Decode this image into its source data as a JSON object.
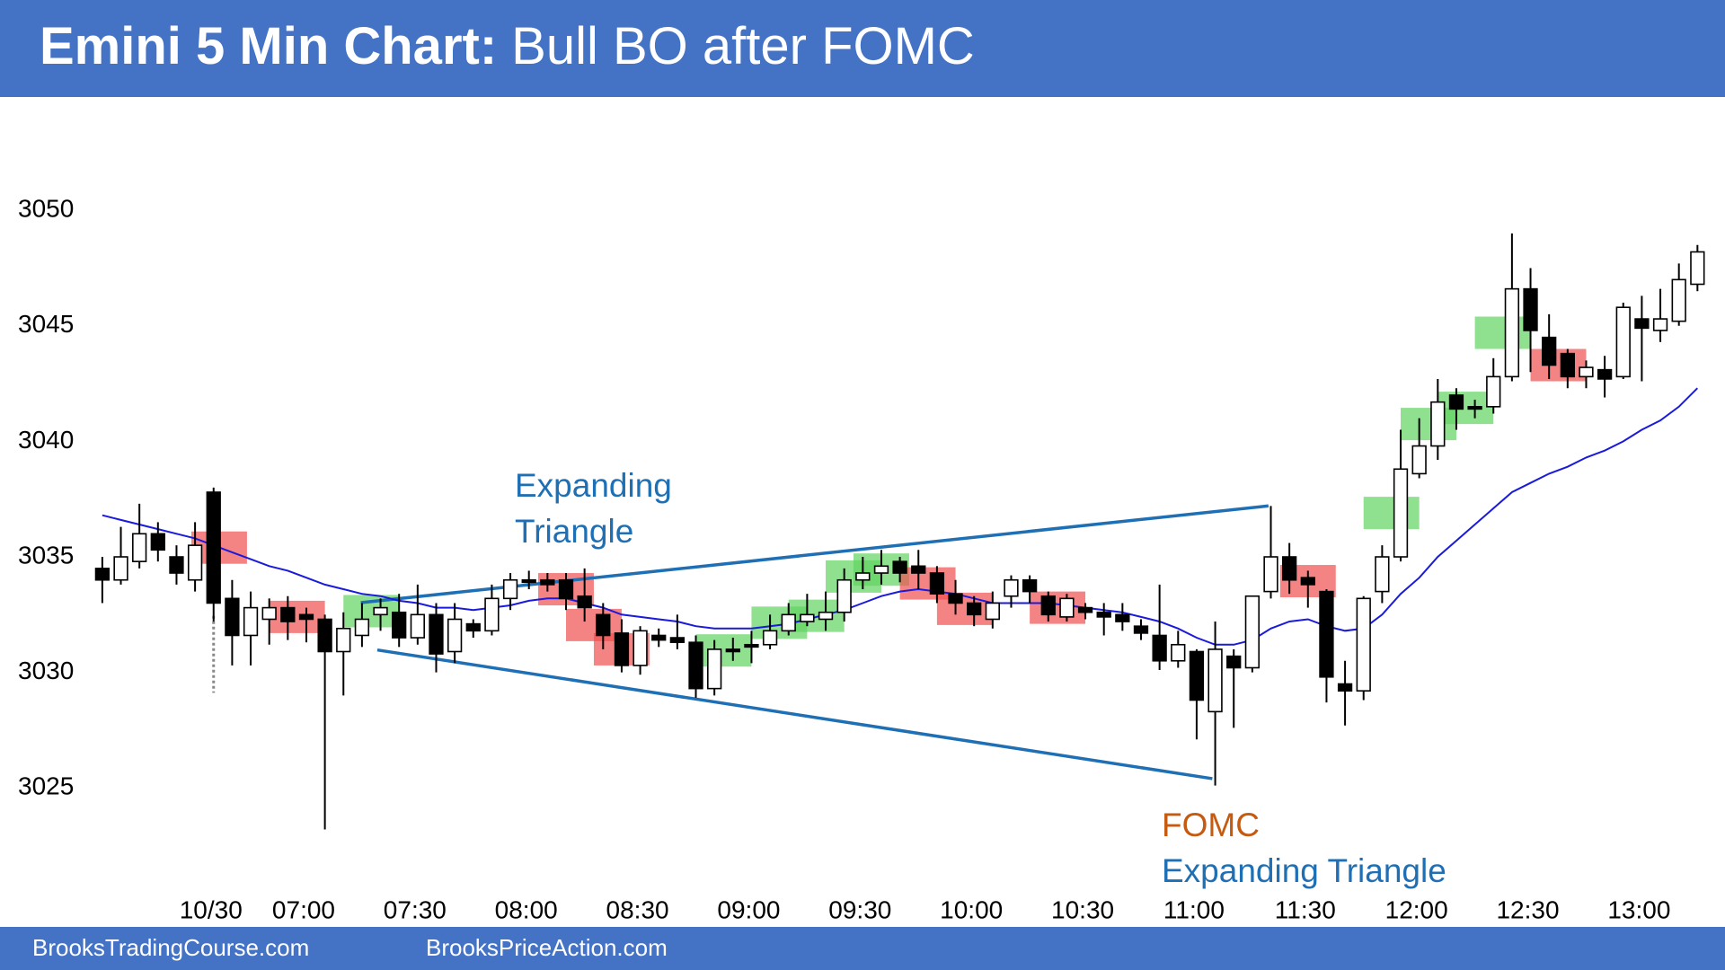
{
  "chart_data": {
    "type": "candlestick",
    "title": "Emini 5 Min Chart:",
    "subtitle": "Bull BO after FOMC",
    "categories": [
      null,
      null,
      null,
      null,
      null,
      null,
      "10/30",
      null,
      null,
      null,
      null,
      "07:00",
      null,
      null,
      null,
      null,
      null,
      "07:30",
      null,
      null,
      null,
      null,
      null,
      "08:00",
      null,
      null,
      null,
      null,
      null,
      "08:30",
      null,
      null,
      null,
      null,
      null,
      "09:00",
      null,
      null,
      null,
      null,
      null,
      "09:30",
      null,
      null,
      null,
      null,
      null,
      "10:00",
      null,
      null,
      null,
      null,
      null,
      "10:30",
      null,
      null,
      null,
      null,
      null,
      "11:00",
      null,
      null,
      null,
      null,
      null,
      "11:30",
      null,
      null,
      null,
      null,
      null,
      "12:00",
      null,
      null,
      null,
      null,
      null,
      "12:30",
      null,
      null,
      null,
      null,
      null,
      "13:00",
      null,
      null,
      null
    ],
    "open": [
      3034.5,
      3034,
      3034.8,
      3036,
      3035,
      3034,
      3037.8,
      3033.2,
      3031.6,
      3032.3,
      3032.8,
      3032.5,
      3032.3,
      3030.9,
      3031.6,
      3032.5,
      3032.6,
      3031.5,
      3032.5,
      3030.9,
      3032.1,
      3031.8,
      3033.2,
      3034,
      3034,
      3034,
      3033.3,
      3032.5,
      3031.7,
      3030.3,
      3031.6,
      3031.5,
      3031.3,
      3029.3,
      3031,
      3031.2,
      3031.2,
      3031.8,
      3032.2,
      3032.3,
      3032.6,
      3034,
      3034.3,
      3034.8,
      3034.6,
      3034.3,
      3033.4,
      3033,
      3032.3,
      3033.3,
      3034,
      3033.3,
      3032.4,
      3032.8,
      3032.6,
      3032.5,
      3032,
      3031.6,
      3030.5,
      3030.9,
      3028.3,
      3030.7,
      3030.2,
      3033.5,
      3035,
      3034.1,
      3033.5,
      3029.5,
      3029.2,
      3033.5,
      3035,
      3038.6,
      3039.8,
      3042,
      3041.5,
      3041.5,
      3042.8,
      3046.6,
      3044.5,
      3043.8,
      3042.8,
      3043.1,
      3042.8,
      3045.3,
      3044.8,
      3045.2,
      3046.8
    ],
    "high": [
      3035,
      3036.3,
      3037.3,
      3036.5,
      3035.5,
      3036.5,
      3038,
      3034,
      3033.5,
      3033.2,
      3033.3,
      3032.8,
      3032.5,
      3032.6,
      3033,
      3033.2,
      3033.4,
      3033.8,
      3033,
      3033,
      3032.3,
      3033.8,
      3034.3,
      3034.4,
      3034.3,
      3034.3,
      3034.5,
      3033,
      3032.3,
      3032,
      3031.9,
      3032.5,
      3031.6,
      3031.4,
      3031.5,
      3031.8,
      3032.5,
      3033,
      3033.4,
      3033.5,
      3034.5,
      3035,
      3035.3,
      3035,
      3035.3,
      3034.6,
      3034,
      3033.3,
      3033.5,
      3034.2,
      3034.2,
      3033.5,
      3033.4,
      3033,
      3033,
      3033,
      3032.3,
      3033.8,
      3031.8,
      3031,
      3032.2,
      3031,
      3033.3,
      3037.2,
      3035.6,
      3034.4,
      3033.6,
      3030.5,
      3033.3,
      3035.5,
      3040.5,
      3041,
      3042.7,
      3042.3,
      3041.8,
      3043.6,
      3049,
      3047.5,
      3045.5,
      3044,
      3043.5,
      3043.7,
      3046,
      3046.3,
      3046.6,
      3047.7,
      3048.5
    ],
    "low": [
      3033,
      3033.8,
      3034.5,
      3034.8,
      3033.8,
      3033.5,
      3032.2,
      3030.3,
      3030.3,
      3031.2,
      3031.4,
      3031.3,
      3023.2,
      3029,
      3031.1,
      3031.8,
      3031.1,
      3031.2,
      3030,
      3030.4,
      3031.5,
      3031.6,
      3032.7,
      3033.6,
      3033.5,
      3032.7,
      3032.2,
      3031,
      3030,
      3029.9,
      3031.1,
      3031,
      3028.9,
      3029,
      3030.5,
      3030.4,
      3031,
      3031.6,
      3032,
      3031.8,
      3032.2,
      3033.6,
      3033.8,
      3033.9,
      3033.6,
      3033,
      3032.5,
      3032,
      3031.9,
      3032.8,
      3033,
      3032.2,
      3032.2,
      3032.3,
      3031.6,
      3031.8,
      3031.4,
      3030.1,
      3030.2,
      3027.1,
      3025.1,
      3027.6,
      3030,
      3033.2,
      3033.4,
      3032.8,
      3028.7,
      3027.7,
      3028.8,
      3033,
      3034.8,
      3038.4,
      3039.2,
      3040.5,
      3041,
      3041.2,
      3042.6,
      3043,
      3042.7,
      3042.3,
      3042.3,
      3041.9,
      3042.7,
      3042.6,
      3044.3,
      3045,
      3046.5
    ],
    "close": [
      3034,
      3035,
      3036,
      3035.3,
      3034.3,
      3035.5,
      3033,
      3031.6,
      3032.8,
      3032.8,
      3032.2,
      3032.3,
      3030.9,
      3031.9,
      3032.3,
      3032.8,
      3031.5,
      3032.5,
      3030.8,
      3032.3,
      3031.8,
      3033.2,
      3034,
      3033.9,
      3033.8,
      3033.2,
      3032.8,
      3031.6,
      3030.3,
      3031.8,
      3031.4,
      3031.3,
      3029.3,
      3031,
      3030.9,
      3031.1,
      3031.8,
      3032.5,
      3032.5,
      3032.6,
      3034,
      3034.3,
      3034.6,
      3034.3,
      3034.3,
      3033.4,
      3033,
      3032.5,
      3033,
      3034,
      3033.5,
      3032.5,
      3033.2,
      3032.6,
      3032.4,
      3032.2,
      3031.7,
      3030.5,
      3031.2,
      3028.8,
      3031,
      3030.2,
      3033.3,
      3035,
      3034,
      3033.8,
      3029.8,
      3029.2,
      3033.2,
      3035,
      3038.8,
      3039.8,
      3041.7,
      3041.4,
      3041.4,
      3042.8,
      3046.6,
      3044.8,
      3043.3,
      3042.8,
      3043.2,
      3042.7,
      3045.8,
      3044.9,
      3045.3,
      3047,
      3048.2
    ],
    "moving_average": [
      3036.8,
      3036.6,
      3036.4,
      3036.2,
      3036,
      3035.8,
      3035.5,
      3035.2,
      3034.9,
      3034.6,
      3034.4,
      3034.1,
      3033.8,
      3033.6,
      3033.4,
      3033.3,
      3033.1,
      3033,
      3032.8,
      3032.8,
      3032.7,
      3032.8,
      3032.9,
      3033.1,
      3033.2,
      3033.2,
      3033,
      3032.8,
      3032.5,
      3032.4,
      3032.3,
      3032.2,
      3032,
      3031.9,
      3031.9,
      3031.9,
      3032,
      3032.1,
      3032.3,
      3032.5,
      3032.7,
      3033,
      3033.3,
      3033.5,
      3033.6,
      3033.5,
      3033.4,
      3033.2,
      3033,
      3033,
      3033,
      3033,
      3032.9,
      3032.8,
      3032.7,
      3032.6,
      3032.4,
      3032.2,
      3031.9,
      3031.5,
      3031.2,
      3031.2,
      3031.4,
      3031.9,
      3032.2,
      3032.3,
      3032,
      3031.8,
      3031.9,
      3032.5,
      3033.4,
      3034.1,
      3035,
      3035.7,
      3036.4,
      3037.1,
      3037.8,
      3038.2,
      3038.6,
      3038.9,
      3039.3,
      3039.6,
      3040,
      3040.5,
      3040.9,
      3041.5,
      3042.3
    ],
    "ma_color": "#1a1adb",
    "ylim": [
      3020.5,
      3053
    ],
    "yticks": [
      3025,
      3030,
      3035,
      3040,
      3045,
      3050
    ],
    "annotations": [
      {
        "lines": [
          "Expanding",
          "Triangle"
        ],
        "color": "#1f6fb4"
      },
      {
        "lines": [
          "FOMC"
        ],
        "color": "#c55a11"
      },
      {
        "lines": [
          "Expanding Triangle"
        ],
        "color": "#1f6fb4"
      }
    ],
    "footer": [
      "BrooksTradingCourse.com",
      "BrooksPriceAction.com"
    ]
  }
}
